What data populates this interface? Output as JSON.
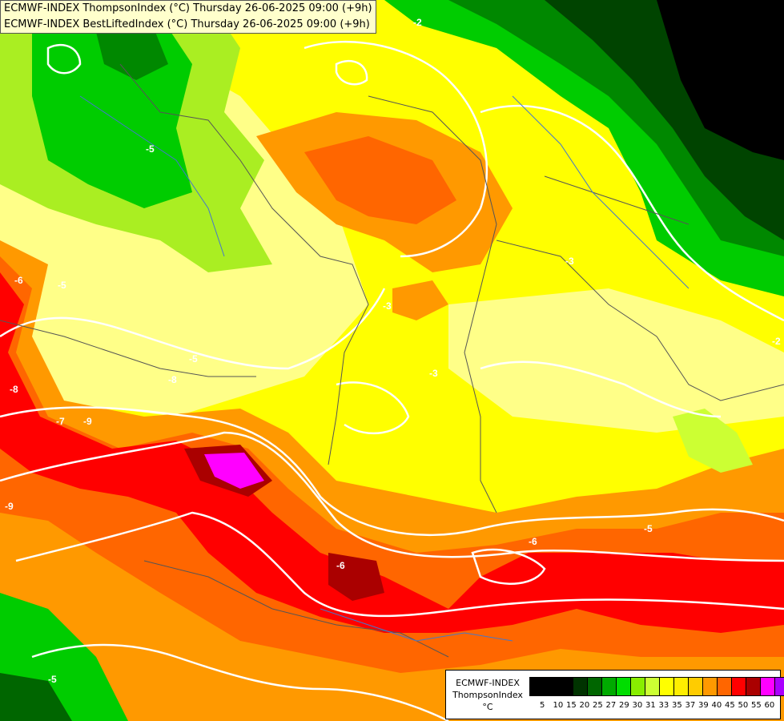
{
  "title": {
    "line1": "ECMWF-INDEX ThompsonIndex (°C) Thursday 26-06-2025 09:00 (+9h)",
    "line2": "ECMWF-INDEX BestLiftedIndex (°C) Thursday 26-06-2025 09:00 (+9h)"
  },
  "legend": {
    "model": "ECMWF-INDEX",
    "parameter": "ThompsonIndex",
    "unit": "°C",
    "values": [
      "5",
      "10",
      "15",
      "20",
      "25",
      "27",
      "29",
      "30",
      "31",
      "33",
      "35",
      "37",
      "39",
      "40",
      "45",
      "50",
      "55",
      "60"
    ],
    "colors": [
      "#000000",
      "#000000",
      "#000000",
      "#003300",
      "#006600",
      "#00aa00",
      "#00dd00",
      "#88ee00",
      "#ccff33",
      "#ffff00",
      "#ffee00",
      "#ffcc00",
      "#ff9900",
      "#ff6600",
      "#ff0000",
      "#aa0000",
      "#ff00ff",
      "#aa00ff",
      "#7700ff",
      "#0000ff"
    ]
  },
  "contour_labels": [
    "-2",
    "-5",
    "-6",
    "-5",
    "-3",
    "-3",
    "-7",
    "-8",
    "-9",
    "-5",
    "-6",
    "-6",
    "-2",
    "-5",
    "-5",
    "-3",
    "-9",
    "-8"
  ]
}
